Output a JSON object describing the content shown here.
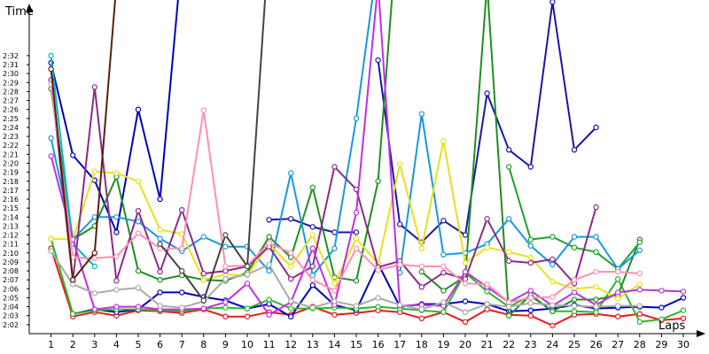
{
  "chart_data": {
    "type": "line",
    "title": "",
    "xlabel": "Laps",
    "ylabel": "Time",
    "x": [
      1,
      2,
      3,
      4,
      5,
      6,
      7,
      8,
      9,
      10,
      11,
      12,
      13,
      14,
      15,
      16,
      17,
      18,
      19,
      20,
      21,
      22,
      23,
      24,
      25,
      26,
      27,
      28,
      29,
      30
    ],
    "xlim": [
      0,
      30.5
    ],
    "ylim": [
      121.0,
      155.0
    ],
    "yticks": [
      122,
      123,
      124,
      125,
      126,
      127,
      128,
      129,
      130,
      131,
      132,
      133,
      134,
      135,
      136,
      137,
      138,
      139,
      140,
      141,
      142,
      143,
      144,
      145,
      146,
      147,
      148,
      149,
      150,
      151,
      152
    ],
    "ytick_labels": [
      "2:02",
      "2:03",
      "2:04",
      "2:05",
      "2:06",
      "2:07",
      "2:08",
      "2:09",
      "2:10",
      "2:11",
      "2:12",
      "2:13",
      "2:14",
      "2:15",
      "2:16",
      "2:17",
      "2:18",
      "2:19",
      "2:20",
      "2:21",
      "2:22",
      "2:23",
      "2:24",
      "2:25",
      "2:26",
      "2:27",
      "2:28",
      "2:29",
      "2:30",
      "2:31",
      "2:32"
    ],
    "grid": false,
    "legend": "none",
    "series": [
      {
        "color": "#e61b1b",
        "values": [
          130.5,
          122.9,
          123.4,
          123.0,
          123.6,
          123.5,
          123.3,
          123.7,
          122.9,
          122.9,
          123.4,
          123.1,
          124.0,
          123.1,
          123.3,
          123.6,
          123.4,
          122.7,
          123.4,
          122.3,
          123.7,
          123.1,
          123.0,
          121.9,
          123.1,
          123.2,
          122.9,
          123.2,
          122.5,
          122.7
        ]
      },
      {
        "color": "#0000bb",
        "values": [
          151.2,
          140.9,
          138.1,
          132.3,
          146.0,
          136.0,
          163.0,
          null,
          null,
          null,
          null,
          null,
          null,
          null,
          null,
          null,
          null,
          null,
          null,
          null,
          null,
          null,
          null,
          null,
          null,
          null,
          null,
          null,
          null,
          null
        ]
      },
      {
        "color": "#0000bb",
        "values": [
          null,
          123.2,
          123.7,
          123.4,
          123.7,
          125.6,
          125.6,
          125.1,
          124.7,
          123.8,
          124.3,
          122.9,
          126.4,
          124.2,
          123.6,
          128.8,
          124.0,
          124.3,
          124.3,
          124.6,
          124.3,
          123.5,
          123.6,
          123.8,
          124.2,
          123.8,
          123.9,
          124.0,
          123.9,
          125.0
        ]
      },
      {
        "color": "#1a16a8",
        "values": [
          null,
          null,
          null,
          null,
          null,
          null,
          null,
          null,
          null,
          null,
          null,
          null,
          null,
          null,
          null,
          151.5,
          133.2,
          131.2,
          133.6,
          132.0,
          147.8,
          141.5,
          139.6,
          158.0,
          141.5,
          144.0,
          null,
          null,
          null,
          null
        ]
      },
      {
        "color": "#1a16a8",
        "values": [
          null,
          null,
          null,
          null,
          null,
          null,
          null,
          null,
          null,
          null,
          133.7,
          133.8,
          132.9,
          132.3,
          132.3,
          null,
          null,
          null,
          null,
          null,
          null,
          null,
          null,
          null,
          null,
          null,
          null,
          null,
          null,
          null
        ]
      },
      {
        "color": "#2bb82b",
        "values": [
          131.6,
          123.2,
          123.6,
          123.7,
          123.7,
          123.6,
          123.5,
          123.8,
          123.9,
          123.8,
          124.8,
          123.8,
          123.8,
          123.9,
          123.8,
          124.0,
          123.8,
          123.6,
          123.4,
          127.8,
          125.7,
          124.0,
          125.2,
          123.5,
          123.5,
          123.4,
          127.1,
          122.3,
          122.6,
          123.6
        ]
      },
      {
        "color": "#1f8f1f",
        "values": [
          148.3,
          131.5,
          133.0,
          138.5,
          128.0,
          127.0,
          127.5,
          127.0,
          126.9,
          127.8,
          131.8,
          129.5,
          137.3,
          127.3,
          126.9,
          138.0,
          170.0,
          null,
          null,
          null,
          null,
          null,
          null,
          null,
          null,
          null,
          null,
          null,
          null,
          null
        ]
      },
      {
        "color": "#1f8f1f",
        "values": [
          null,
          null,
          null,
          null,
          null,
          null,
          null,
          null,
          null,
          null,
          null,
          null,
          null,
          null,
          null,
          null,
          null,
          127.9,
          125.8,
          127.4,
          160.0,
          123.0,
          125.3,
          123.5,
          124.8,
          124.8,
          125.3,
          131.5,
          null,
          null
        ]
      },
      {
        "color": "#20a12a",
        "values": [
          null,
          null,
          null,
          null,
          null,
          null,
          null,
          null,
          null,
          null,
          null,
          null,
          null,
          null,
          null,
          null,
          null,
          null,
          null,
          null,
          null,
          139.6,
          131.5,
          131.8,
          130.6,
          130.1,
          128.2,
          131.2,
          null,
          null
        ]
      },
      {
        "color": "#1898e0",
        "values": [
          142.8,
          131.5,
          134.0,
          134.0,
          133.5,
          131.6,
          130.2,
          131.8,
          130.7,
          130.7,
          128.0,
          138.9,
          127.5,
          130.5,
          145.0,
          163.0,
          null,
          null,
          null,
          null,
          null,
          null,
          null,
          null,
          null,
          null,
          null,
          null,
          null,
          null
        ]
      },
      {
        "color": "#1898e0",
        "values": [
          null,
          null,
          null,
          null,
          null,
          null,
          null,
          null,
          null,
          null,
          null,
          null,
          null,
          null,
          null,
          null,
          127.8,
          145.5,
          129.8,
          130.0,
          131.0,
          133.8,
          130.8,
          128.7,
          131.8,
          131.8,
          128.2,
          130.3,
          null,
          null
        ]
      },
      {
        "color": "#00b8c8",
        "values": [
          152.0,
          131.0,
          128.5,
          null,
          null,
          null,
          null,
          null,
          null,
          null,
          null,
          null,
          null,
          null,
          null,
          null,
          null,
          null,
          null,
          null,
          null,
          null,
          null,
          null,
          null,
          null,
          null,
          null,
          null,
          null
        ]
      },
      {
        "color": "#e8e020",
        "values": [
          131.6,
          131.5,
          139.1,
          138.9,
          138.0,
          132.6,
          132.1,
          127.0,
          127.6,
          127.5,
          131.0,
          128.5,
          132.0,
          126.6,
          131.6,
          128.8,
          139.9,
          130.5,
          142.5,
          128.9,
          130.6,
          130.1,
          129.5,
          126.8,
          126.0,
          126.2,
          124.9,
          126.5,
          null,
          null
        ]
      },
      {
        "color": "#8b2b8b",
        "values": [
          149.3,
          126.9,
          148.5,
          126.9,
          134.7,
          127.9,
          134.8,
          127.7,
          128.0,
          128.5,
          130.7,
          127.1,
          128.5,
          139.6,
          137.1,
          128.4,
          129.1,
          126.2,
          127.8,
          127.1,
          133.8,
          129.1,
          128.9,
          129.3,
          126.6,
          135.1,
          null,
          null,
          null,
          null
        ]
      },
      {
        "color": "#8b2b8b",
        "values": [
          null,
          null,
          null,
          null,
          null,
          null,
          null,
          null,
          null,
          null,
          null,
          null,
          null,
          null,
          null,
          null,
          null,
          null,
          null,
          null,
          null,
          null,
          null,
          null,
          null,
          null,
          null,
          null,
          null,
          null
        ]
      },
      {
        "color": "#c030e0",
        "values": [
          140.8,
          131.5,
          123.7,
          124.0,
          124.0,
          123.7,
          123.7,
          123.8,
          124.5,
          126.6,
          123.1,
          124.5,
          130.5,
          124.2,
          134.5,
          160.0,
          124.1,
          124.2,
          124.1,
          127.9,
          126.2,
          124.5,
          125.8,
          124.1,
          125.6,
          124.2,
          125.6,
          125.9,
          125.8,
          125.7
        ]
      },
      {
        "color": "#ff8fb0",
        "values": [
          148.8,
          129.5,
          129.4,
          129.6,
          132.2,
          130.5,
          130.5,
          145.9,
          128.5,
          128.6,
          131.1,
          130.0,
          127.0,
          125.8,
          130.5,
          128.1,
          128.7,
          128.5,
          128.5,
          126.6,
          126.5,
          124.5,
          125.0,
          125.1,
          127.0,
          127.9,
          127.9,
          127.7,
          null,
          null
        ]
      },
      {
        "color": "#aaaaaa",
        "values": [
          130.2,
          126.5,
          125.5,
          125.9,
          126.1,
          124.1,
          123.9,
          124.6,
          127.1,
          127.6,
          128.7,
          124.6,
          123.9,
          124.6,
          124.1,
          125.0,
          124.2,
          123.7,
          124.5,
          123.4,
          124.3,
          124.0,
          124.4,
          124.2,
          124.1,
          124.0,
          124.1,
          124.1,
          null,
          null
        ]
      },
      {
        "color": "#444444",
        "values": [
          null,
          null,
          null,
          null,
          null,
          131.0,
          128.0,
          124.7,
          132.0,
          128.5,
          165.0,
          null,
          null,
          null,
          null,
          null,
          null,
          null,
          null,
          null,
          null,
          null,
          null,
          null,
          null,
          null,
          null,
          null,
          null,
          null
        ]
      },
      {
        "color": "#5a2010",
        "values": [
          150.5,
          127.0,
          130.0,
          160.0,
          null,
          null,
          null,
          null,
          null,
          null,
          null,
          null,
          null,
          null,
          null,
          null,
          null,
          null,
          null,
          null,
          null,
          null,
          null,
          null,
          null,
          null,
          null,
          null,
          null,
          null
        ]
      }
    ]
  }
}
